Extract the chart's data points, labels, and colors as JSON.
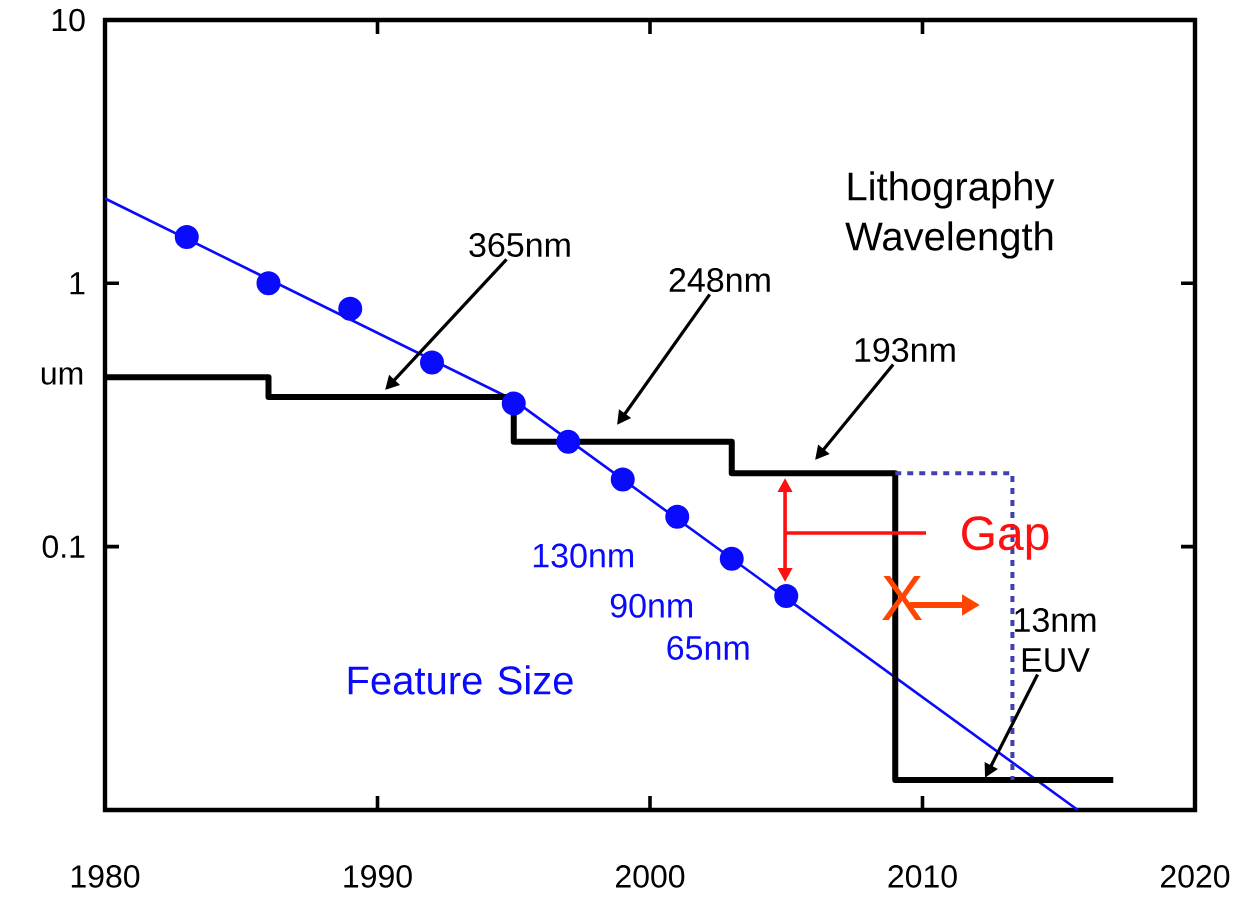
{
  "chart_data": {
    "type": "line",
    "ylabel": "um",
    "log": "y",
    "xlim": [
      1980,
      2020
    ],
    "ylim": [
      0.01,
      10
    ],
    "xticks": [
      1980,
      1990,
      2000,
      2010,
      2020
    ],
    "yticks": [
      10,
      1,
      0.1
    ],
    "series": [
      {
        "name": "Feature Size",
        "type": "scatter",
        "marker": "circle",
        "color": "#0a0aff",
        "x": [
          1983,
          1986,
          1989,
          1992,
          1995,
          1997,
          1999,
          2001,
          2003,
          2005
        ],
        "values": [
          1.5,
          1.0,
          0.8,
          0.5,
          0.35,
          0.25,
          0.18,
          0.13,
          0.09,
          0.065
        ]
      },
      {
        "color": "#0a0aff",
        "x": [
          1980,
          1995,
          2015.7
        ],
        "values": [
          2.1,
          0.36,
          0.01
        ]
      },
      {
        "name": "Lithography Wavelength",
        "type": "step",
        "color": "#000000",
        "x": [
          1980,
          1986,
          1995,
          2003,
          2009,
          2017
        ],
        "values": [
          0.44,
          0.37,
          0.25,
          0.19,
          0.013,
          0.013
        ]
      },
      {
        "line_style": "dotted",
        "color": "#4040b0",
        "x": [
          2009,
          2013.3,
          2013.3
        ],
        "values": [
          0.19,
          0.19,
          0.013
        ]
      }
    ],
    "annotations": [
      "365nm",
      "248nm",
      "193nm",
      "13nm EUV",
      {
        "text": "130nm",
        "x": 2001,
        "y": 0.13
      },
      {
        "text": "90nm",
        "x": 2003,
        "y": 0.09
      },
      {
        "text": "65nm",
        "x": 2005,
        "y": 0.065
      },
      "Gap",
      "X"
    ]
  }
}
